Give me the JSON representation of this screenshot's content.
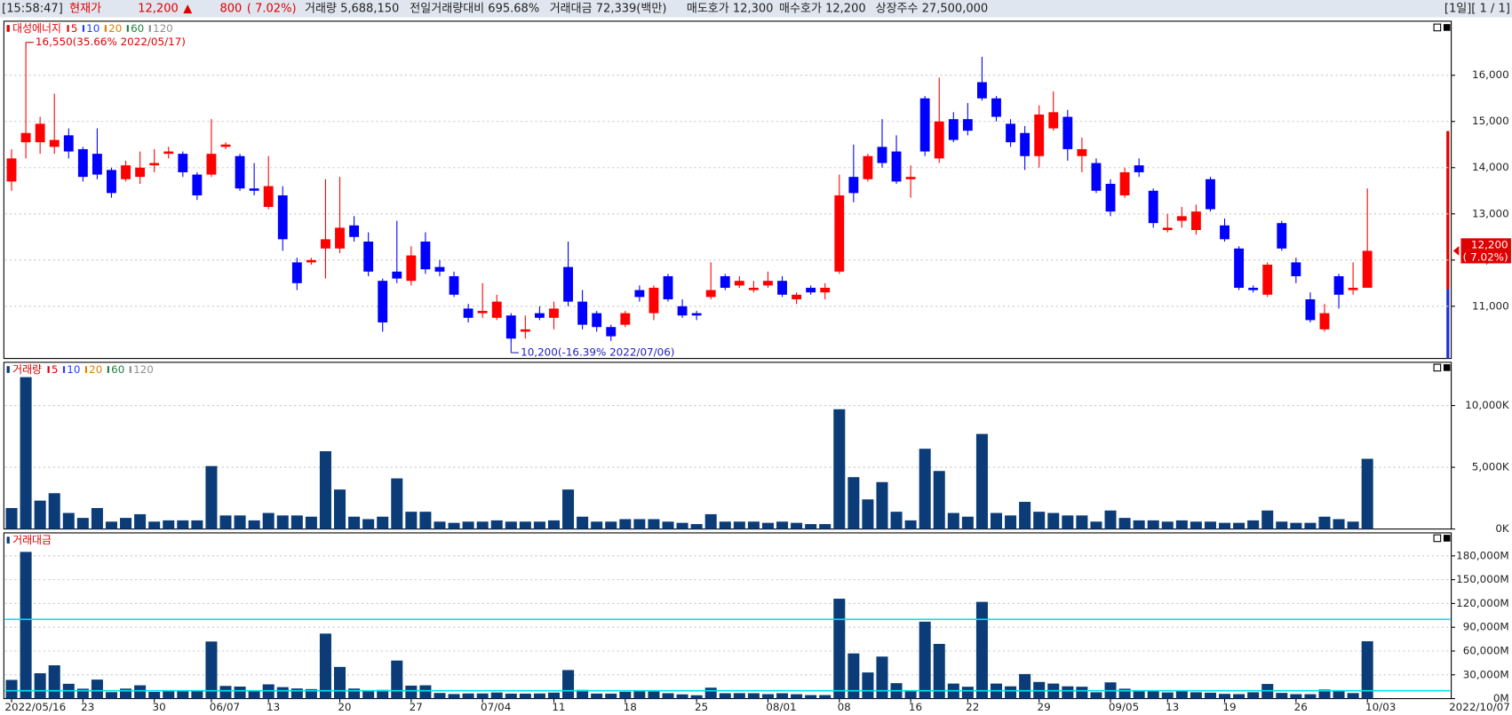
{
  "header": {
    "time": "[15:58:47]",
    "price_label": "현재가",
    "price": "12,200",
    "arrow": "▲",
    "change": "800",
    "change_pct": "( 7.02%)",
    "volume": "거래량 5,688,150",
    "volume_ratio": "전일거래량대비 695.68%",
    "turnover": "거래대금 72,339(백만)",
    "ask": "매도호가 12,300",
    "bid": "매수호가 12,200",
    "shares": "상장주수 27,500,000",
    "page": "[1일][ 1 / 1]"
  },
  "axis_date": "2022/10/07",
  "chart_data": [
    {
      "type": "candlestick",
      "title": "대성에너지",
      "ma": [
        {
          "label": "5",
          "color": "#e00000"
        },
        {
          "label": "10",
          "color": "#2040ff"
        },
        {
          "label": "20",
          "color": "#e08000"
        },
        {
          "label": "60",
          "color": "#208040"
        },
        {
          "label": "120",
          "color": "#909090"
        }
      ],
      "up_color": "#ff0000",
      "down_color": "#0000ff",
      "categories": [
        "2022/05/16",
        null,
        null,
        null,
        null,
        "23",
        null,
        null,
        null,
        null,
        "30",
        null,
        null,
        null,
        "06/07",
        null,
        null,
        null,
        "13",
        null,
        null,
        null,
        null,
        "20",
        null,
        null,
        null,
        null,
        "27",
        null,
        null,
        null,
        null,
        "07/04",
        null,
        null,
        null,
        null,
        "11",
        null,
        null,
        null,
        null,
        "18",
        null,
        null,
        null,
        null,
        "25",
        null,
        null,
        null,
        null,
        "08/01",
        null,
        null,
        null,
        null,
        "08",
        null,
        null,
        null,
        null,
        "16",
        null,
        null,
        null,
        "22",
        null,
        null,
        null,
        null,
        "29",
        null,
        null,
        null,
        null,
        "09/05",
        null,
        null,
        null,
        "13",
        null,
        null,
        null,
        "19",
        null,
        null,
        null,
        null,
        "26",
        null,
        null,
        null,
        null,
        "10/03"
      ],
      "open": [
        13700,
        14550,
        14550,
        14450,
        14700,
        14400,
        14300,
        13950,
        13750,
        13800,
        14050,
        14300,
        14300,
        13850,
        13850,
        14450,
        14250,
        13550,
        13150,
        13400,
        11950,
        11950,
        12250,
        12250,
        12750,
        12400,
        11550,
        11750,
        11550,
        12400,
        11850,
        11650,
        10950,
        10850,
        10750,
        10800,
        10450,
        10850,
        10750,
        11850,
        11100,
        10850,
        10550,
        10600,
        11350,
        10850,
        11650,
        11000,
        10850,
        11200,
        11650,
        11450,
        11350,
        11450,
        11550,
        11150,
        11400,
        11300,
        11750,
        13800,
        13750,
        14450,
        14350,
        13750,
        15500,
        14200,
        15050,
        15050,
        15850,
        15500,
        14950,
        14750,
        14250,
        14850,
        15100,
        14250,
        14100,
        13650,
        13400,
        14050,
        13500,
        12650,
        12850,
        12650,
        13750,
        12750,
        12250,
        11400,
        11250,
        12800,
        11950,
        11150,
        10500,
        11650,
        11350,
        11400
      ],
      "high": [
        14400,
        16550,
        15100,
        15600,
        14850,
        14450,
        14850,
        14000,
        14150,
        14350,
        14400,
        14450,
        14350,
        13900,
        15050,
        14550,
        14300,
        14100,
        14250,
        13600,
        12050,
        12050,
        13750,
        13800,
        12950,
        12600,
        11600,
        12850,
        12300,
        12600,
        12000,
        11750,
        11050,
        11500,
        11250,
        10850,
        10800,
        11000,
        11100,
        12400,
        11350,
        10900,
        10600,
        10900,
        11450,
        11450,
        11700,
        11150,
        10900,
        11950,
        11700,
        11650,
        11550,
        11750,
        11650,
        11300,
        11450,
        11500,
        13850,
        14500,
        14300,
        15050,
        14700,
        14050,
        15550,
        15950,
        15200,
        15400,
        16400,
        15550,
        15050,
        14900,
        15350,
        15650,
        15250,
        14650,
        14200,
        13750,
        14000,
        14200,
        13550,
        13000,
        13150,
        13200,
        13800,
        12900,
        12300,
        11450,
        11950,
        12850,
        12050,
        11300,
        11050,
        11700,
        11950,
        13550
      ],
      "low": [
        13500,
        14200,
        14300,
        14300,
        14200,
        13700,
        13750,
        13350,
        13700,
        13650,
        13900,
        14200,
        13800,
        13300,
        13800,
        14400,
        13500,
        13400,
        13100,
        12200,
        11350,
        11900,
        11600,
        12150,
        12400,
        11650,
        10450,
        11500,
        11450,
        11700,
        11650,
        11200,
        10650,
        10750,
        10700,
        10200,
        10300,
        10700,
        10500,
        11000,
        10500,
        10450,
        10250,
        10550,
        11100,
        10700,
        11100,
        10750,
        10700,
        11150,
        11350,
        11400,
        11300,
        11400,
        11200,
        11050,
        11250,
        11150,
        11700,
        13250,
        13700,
        14000,
        13650,
        13350,
        14250,
        14100,
        14550,
        14700,
        15450,
        15000,
        14450,
        13950,
        14000,
        14800,
        14150,
        13900,
        13450,
        12950,
        13350,
        13800,
        12700,
        12600,
        12700,
        12550,
        13050,
        12400,
        11350,
        11300,
        11200,
        12200,
        11500,
        10650,
        10450,
        10950,
        11250,
        11400
      ],
      "close": [
        14200,
        14750,
        14950,
        14600,
        14350,
        13800,
        13850,
        13450,
        14050,
        14000,
        14100,
        14350,
        13900,
        13400,
        14300,
        14500,
        13550,
        13500,
        13600,
        12450,
        11500,
        12000,
        12450,
        12700,
        12500,
        11750,
        10650,
        11600,
        12100,
        11800,
        11750,
        11250,
        10750,
        10900,
        11100,
        10300,
        10500,
        10750,
        10950,
        11100,
        10600,
        10550,
        10350,
        10850,
        11200,
        11400,
        11150,
        10800,
        10800,
        11350,
        11400,
        11550,
        11400,
        11550,
        11250,
        11250,
        11300,
        11400,
        13400,
        13450,
        14250,
        14100,
        13700,
        13800,
        14350,
        15000,
        14600,
        14800,
        15500,
        15100,
        14550,
        14250,
        15150,
        15200,
        14400,
        14400,
        13500,
        13050,
        13900,
        13900,
        12800,
        12700,
        12950,
        13050,
        13100,
        12450,
        11400,
        11350,
        11900,
        12250,
        11650,
        10700,
        10850,
        11250,
        11400,
        12200
      ],
      "ylim": [
        9870,
        17170
      ],
      "yticks": [
        {
          "value": 11000,
          "label": "11,000"
        },
        {
          "value": 12000,
          "label": "12,000"
        },
        {
          "value": 13000,
          "label": "13,000"
        },
        {
          "value": 14000,
          "label": "14,000"
        },
        {
          "value": 15000,
          "label": "15,000"
        },
        {
          "value": 16000,
          "label": "16,000"
        }
      ],
      "annotations": [
        {
          "text": "16,550(35.66% 2022/05/17)",
          "index": 1,
          "color": "#e00000"
        },
        {
          "text": "10,200(-16.39% 2022/07/06)",
          "index": 35,
          "color": "#2020c0"
        }
      ],
      "last_price": {
        "value": 12200,
        "label": "12,200",
        "change_label": "( 7.02%)"
      }
    },
    {
      "type": "bar",
      "title": "거래량",
      "color": "#0b3c78",
      "ma": [
        {
          "label": "5",
          "color": "#e00000"
        },
        {
          "label": "10",
          "color": "#2040ff"
        },
        {
          "label": "20",
          "color": "#e08000"
        },
        {
          "label": "60",
          "color": "#208040"
        },
        {
          "label": "120",
          "color": "#909090"
        }
      ],
      "values": [
        1700,
        12300,
        2300,
        2900,
        1300,
        900,
        1700,
        600,
        900,
        1200,
        600,
        700,
        700,
        700,
        5100,
        1100,
        1100,
        700,
        1300,
        1100,
        1100,
        1000,
        6300,
        3200,
        1000,
        800,
        1000,
        4100,
        1400,
        1400,
        600,
        500,
        600,
        600,
        700,
        600,
        600,
        600,
        700,
        3200,
        1000,
        600,
        600,
        800,
        800,
        800,
        600,
        500,
        400,
        1200,
        600,
        600,
        600,
        500,
        600,
        500,
        400,
        400,
        9700,
        4200,
        2400,
        3800,
        1400,
        700,
        6500,
        4700,
        1300,
        1000,
        7700,
        1300,
        1100,
        2200,
        1400,
        1300,
        1100,
        1100,
        600,
        1500,
        900,
        700,
        700,
        600,
        700,
        600,
        600,
        500,
        500,
        700,
        1500,
        600,
        500,
        500,
        1000,
        800,
        600,
        5688
      ],
      "ylim": [
        0,
        13500
      ],
      "yticks": [
        {
          "value": 0,
          "label": "0K"
        },
        {
          "value": 5000,
          "label": "5,000K"
        },
        {
          "value": 10000,
          "label": "10,000K"
        }
      ]
    },
    {
      "type": "bar",
      "title": "거래대금",
      "color": "#0b3c78",
      "line_color": "#00e0f0",
      "values": [
        23600,
        185000,
        32000,
        42000,
        18700,
        12500,
        24000,
        8200,
        12600,
        16800,
        8500,
        10000,
        9800,
        9500,
        72000,
        16000,
        15200,
        9500,
        18000,
        14500,
        12800,
        12000,
        82000,
        40000,
        12700,
        9600,
        11000,
        48000,
        16400,
        16800,
        7100,
        5800,
        6500,
        6500,
        7700,
        6300,
        6300,
        6500,
        7600,
        36000,
        11000,
        6400,
        6300,
        8600,
        9000,
        8900,
        6800,
        5400,
        4300,
        13800,
        6800,
        6900,
        6800,
        5700,
        6800,
        5600,
        4500,
        4500,
        126000,
        57000,
        33000,
        53000,
        19500,
        9800,
        97000,
        69000,
        19000,
        15000,
        122000,
        19000,
        15500,
        31000,
        21000,
        19000,
        15500,
        15000,
        8000,
        20500,
        12500,
        9000,
        9000,
        7800,
        9000,
        8000,
        7500,
        6000,
        5700,
        8000,
        18500,
        7200,
        5700,
        5600,
        11500,
        9200,
        7000,
        72339
      ],
      "hlines": [
        100000,
        10000
      ],
      "ylim": [
        0,
        209000
      ],
      "yticks": [
        {
          "value": 0,
          "label": "0M"
        },
        {
          "value": 30000,
          "label": "30,000M"
        },
        {
          "value": 60000,
          "label": "60,000M"
        },
        {
          "value": 90000,
          "label": "90,000M"
        },
        {
          "value": 120000,
          "label": "120,000M"
        },
        {
          "value": 150000,
          "label": "150,000M"
        },
        {
          "value": 180000,
          "label": "180,000M"
        }
      ]
    }
  ]
}
